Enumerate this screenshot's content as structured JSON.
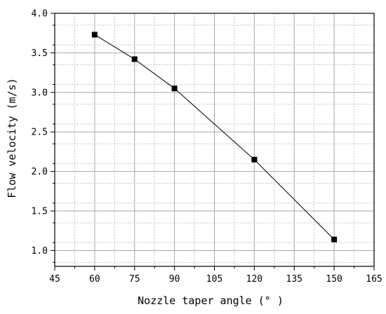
{
  "chart_data": {
    "type": "line",
    "title": "",
    "xlabel": "Nozzle taper angle (° )",
    "ylabel": "Flow velocity (m/s)",
    "xlim": [
      45,
      165
    ],
    "ylim": [
      0.8,
      4.0
    ],
    "xticks": [
      "45",
      "60",
      "75",
      "90",
      "105",
      "120",
      "135",
      "150",
      "165"
    ],
    "yticks": [
      "1.0",
      "1.5",
      "2.0",
      "2.5",
      "3.0",
      "3.5",
      "4.0"
    ],
    "grid": true,
    "legend": "none",
    "marker": "square",
    "series": [
      {
        "x": [
          60,
          75,
          90,
          120,
          150
        ],
        "y": [
          3.73,
          3.42,
          3.05,
          2.15,
          1.14
        ]
      }
    ]
  }
}
